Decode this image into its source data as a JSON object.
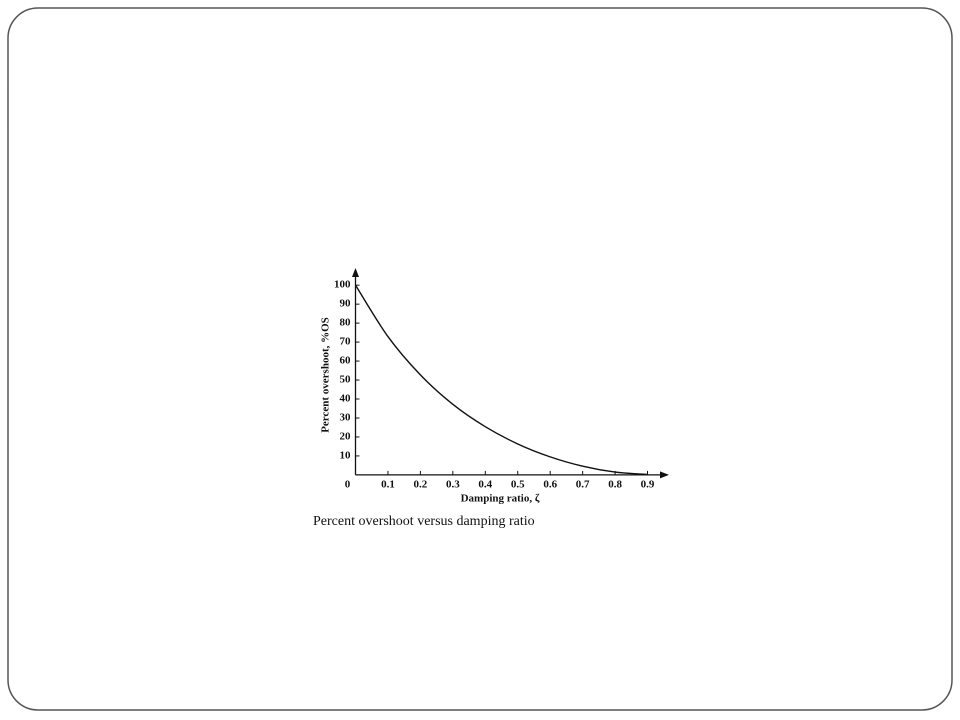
{
  "chart_data": {
    "type": "line",
    "caption": "Percent overshoot versus damping ratio",
    "x_label": "Damping ratio, ζ",
    "y_label": "Percent overshoot, %OS",
    "x": [
      0,
      0.1,
      0.2,
      0.3,
      0.4,
      0.5,
      0.6,
      0.7,
      0.8,
      0.9
    ],
    "series": [
      {
        "name": "%OS",
        "color": "#111111",
        "values": [
          100,
          72.9,
          52.7,
          37.2,
          25.4,
          16.3,
          9.5,
          4.6,
          1.5,
          0.2
        ]
      }
    ],
    "xlim": [
      0,
      0.96
    ],
    "ylim": [
      0,
      108
    ],
    "xticks": [
      0,
      0.1,
      0.2,
      0.3,
      0.4,
      0.5,
      0.6,
      0.7,
      0.8,
      0.9
    ],
    "yticks": [
      10,
      20,
      30,
      40,
      50,
      60,
      70,
      80,
      90,
      100
    ],
    "grid": false
  }
}
